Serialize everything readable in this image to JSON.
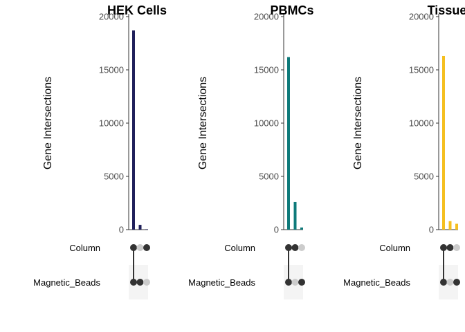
{
  "chart_data": [
    {
      "type": "bar",
      "title": "HEK Cells",
      "ylabel": "Gene Intersections",
      "ylim": [
        0,
        20000
      ],
      "yticks": [
        0,
        5000,
        10000,
        15000,
        20000
      ],
      "sets": [
        "Column",
        "Magnetic_Beads"
      ],
      "intersections": [
        [
          "Column",
          "Magnetic_Beads"
        ],
        [
          "Magnetic_Beads"
        ],
        [
          "Column"
        ]
      ],
      "values": [
        18700,
        450,
        40
      ],
      "color": "#1f1f5a"
    },
    {
      "type": "bar",
      "title": "PBMCs",
      "ylabel": "Gene Intersections",
      "ylim": [
        0,
        20000
      ],
      "yticks": [
        0,
        5000,
        10000,
        15000,
        20000
      ],
      "sets": [
        "Column",
        "Magnetic_Beads"
      ],
      "intersections": [
        [
          "Column",
          "Magnetic_Beads"
        ],
        [
          "Column"
        ],
        [
          "Magnetic_Beads"
        ]
      ],
      "values": [
        16200,
        2600,
        200
      ],
      "color": "#0e7a7a"
    },
    {
      "type": "bar",
      "title": "Tissue",
      "ylabel": "Gene Intersections",
      "ylim": [
        0,
        20000
      ],
      "yticks": [
        0,
        5000,
        10000,
        15000,
        20000
      ],
      "sets": [
        "Column",
        "Magnetic_Beads"
      ],
      "intersections": [
        [
          "Column",
          "Magnetic_Beads"
        ],
        [
          "Column"
        ],
        [
          "Magnetic_Beads"
        ]
      ],
      "values": [
        16300,
        800,
        550
      ],
      "color": "#f5bf1f"
    }
  ]
}
